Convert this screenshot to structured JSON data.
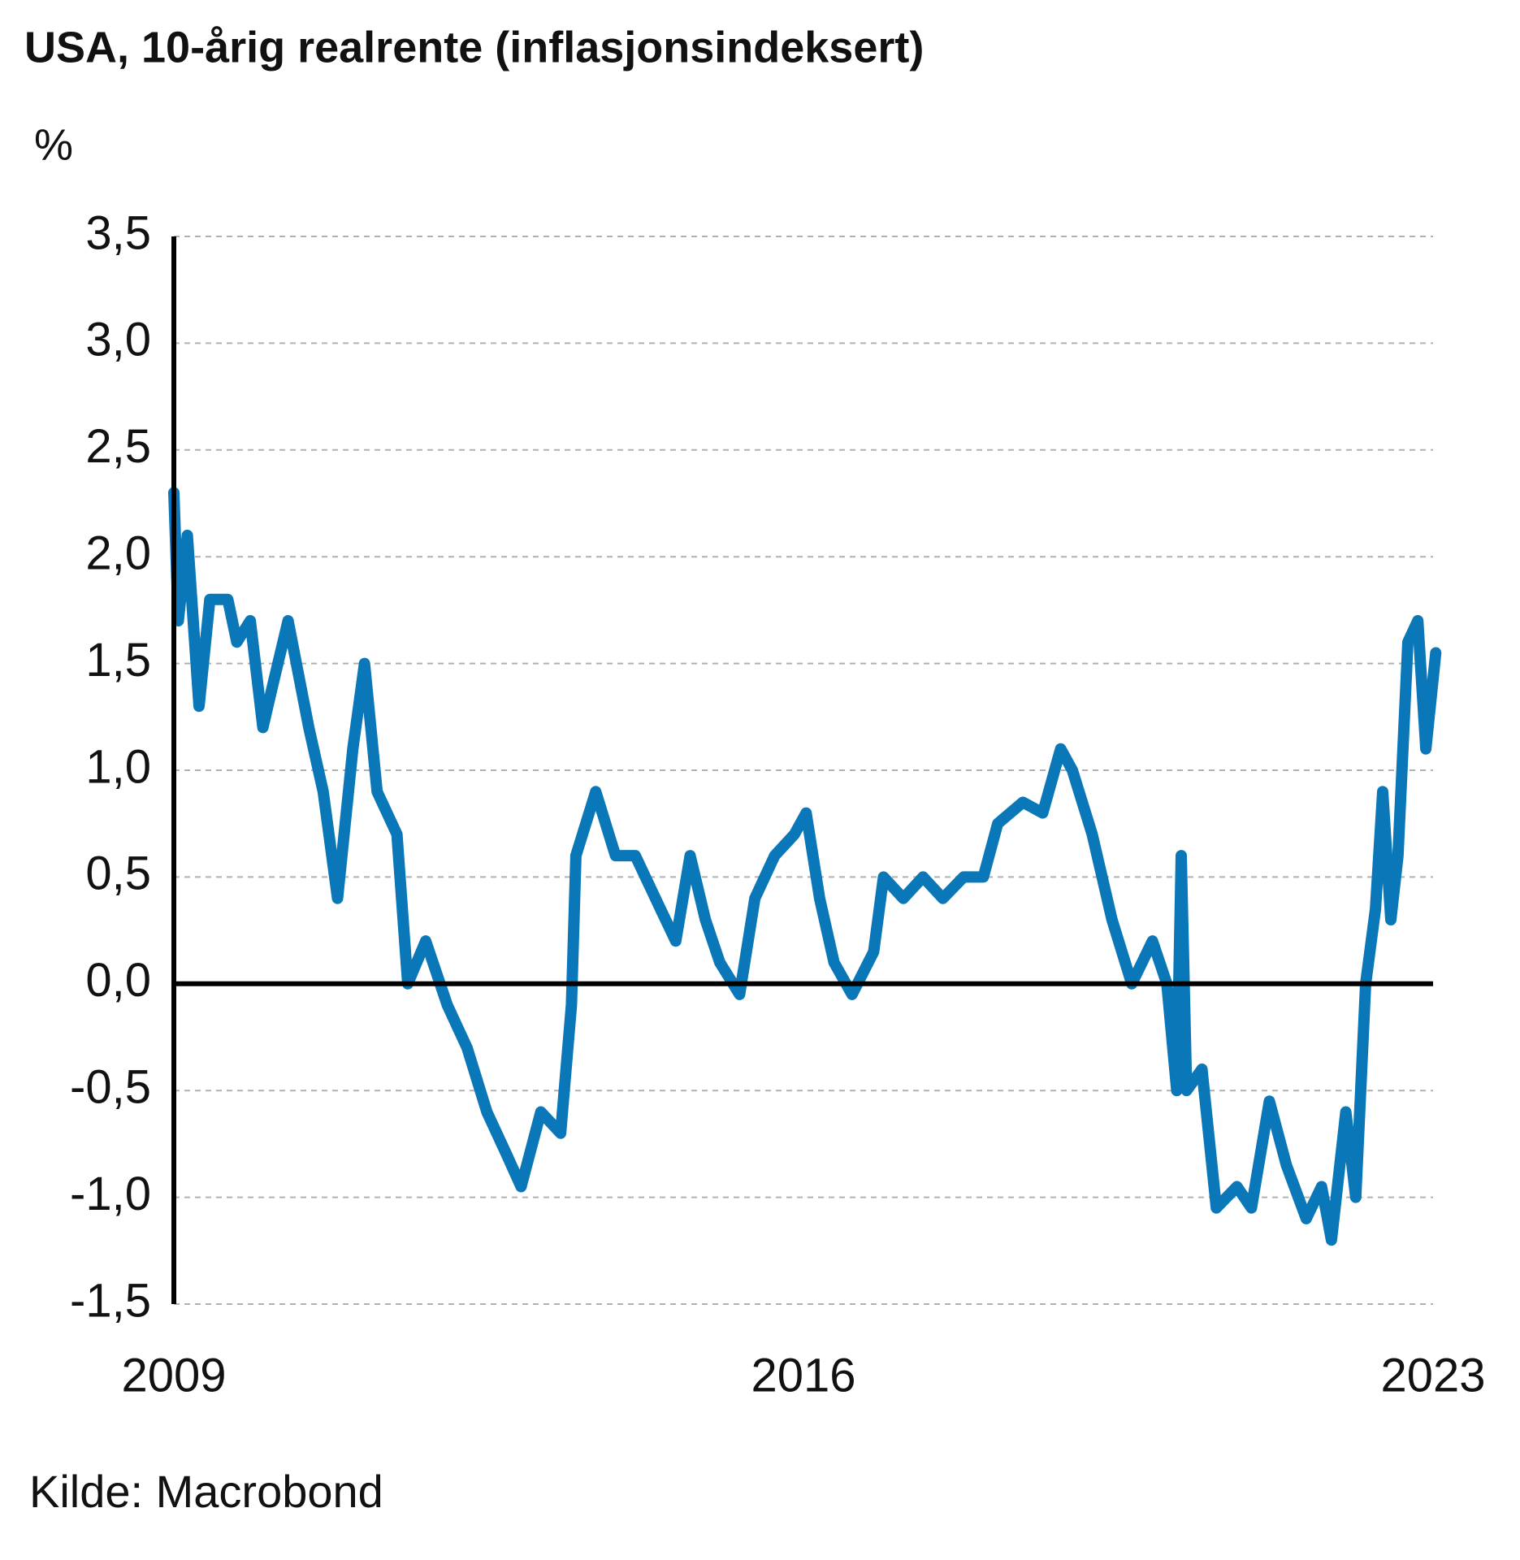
{
  "chart_data": {
    "type": "line",
    "title": "USA, 10-årig realrente (inflasjonsindeksert)",
    "y_label": "%",
    "source": "Kilde: Macrobond",
    "xlim": [
      2009,
      2023
    ],
    "xticks": [
      2009,
      2016,
      2023
    ],
    "ylim": [
      -1.5,
      3.5
    ],
    "yticks": [
      {
        "value": 3.5,
        "label": "3,5"
      },
      {
        "value": 3,
        "label": "3,0"
      },
      {
        "value": 2.5,
        "label": "2,5"
      },
      {
        "value": 2,
        "label": "2,0"
      },
      {
        "value": 1.5,
        "label": "1,5"
      },
      {
        "value": 1,
        "label": "1,0"
      },
      {
        "value": 0.5,
        "label": "0,5"
      },
      {
        "value": 0,
        "label": "0,0"
      },
      {
        "value": -0.5,
        "label": "-0,5"
      },
      {
        "value": -1,
        "label": "-1,0"
      },
      {
        "value": -1.5,
        "label": "-1,5"
      }
    ],
    "grid": true,
    "x": [
      2009.0,
      2009.05,
      2009.15,
      2009.28,
      2009.4,
      2009.6,
      2009.7,
      2009.85,
      2009.99,
      2010.1,
      2010.27,
      2010.5,
      2010.66,
      2010.82,
      2010.99,
      2011.12,
      2011.26,
      2011.48,
      2011.6,
      2011.8,
      2012.04,
      2012.26,
      2012.48,
      2012.7,
      2012.86,
      2013.08,
      2013.3,
      2013.42,
      2013.47,
      2013.69,
      2013.91,
      2014.13,
      2014.41,
      2014.58,
      2014.74,
      2014.91,
      2015.07,
      2015.29,
      2015.46,
      2015.68,
      2015.9,
      2016.03,
      2016.18,
      2016.34,
      2016.54,
      2016.78,
      2016.89,
      2017.11,
      2017.33,
      2017.55,
      2017.78,
      2018.0,
      2018.16,
      2018.44,
      2018.66,
      2018.86,
      2018.99,
      2019.21,
      2019.43,
      2019.65,
      2019.88,
      2020.04,
      2020.15,
      2020.2,
      2020.26,
      2020.43,
      2020.59,
      2020.82,
      2020.98,
      2021.18,
      2021.37,
      2021.59,
      2021.76,
      2021.87,
      2022.03,
      2022.14,
      2022.25,
      2022.36,
      2022.44,
      2022.53,
      2022.61,
      2022.72,
      2022.83,
      2022.92,
      2023.03
    ],
    "series": [
      {
        "name": "USA, 10-årig realrente",
        "color": "#0a78b8",
        "values": [
          2.3,
          1.7,
          2.1,
          1.3,
          1.8,
          1.8,
          1.6,
          1.7,
          1.2,
          1.4,
          1.7,
          1.2,
          0.9,
          0.4,
          1.1,
          1.5,
          0.9,
          0.7,
          0.0,
          0.2,
          -0.1,
          -0.3,
          -0.6,
          -0.8,
          -0.95,
          -0.6,
          -0.7,
          -0.1,
          0.6,
          0.9,
          0.6,
          0.6,
          0.35,
          0.2,
          0.6,
          0.3,
          0.1,
          -0.05,
          0.4,
          0.6,
          0.7,
          0.8,
          0.4,
          0.1,
          -0.05,
          0.15,
          0.5,
          0.4,
          0.5,
          0.4,
          0.5,
          0.5,
          0.75,
          0.85,
          0.8,
          1.1,
          1.0,
          0.7,
          0.3,
          0.0,
          0.2,
          0.0,
          -0.5,
          0.6,
          -0.5,
          -0.4,
          -1.05,
          -0.95,
          -1.05,
          -0.55,
          -0.85,
          -1.1,
          -0.95,
          -1.2,
          -0.6,
          -1.0,
          0.0,
          0.35,
          0.9,
          0.3,
          0.6,
          1.6,
          1.7,
          1.1,
          1.55
        ]
      }
    ]
  }
}
